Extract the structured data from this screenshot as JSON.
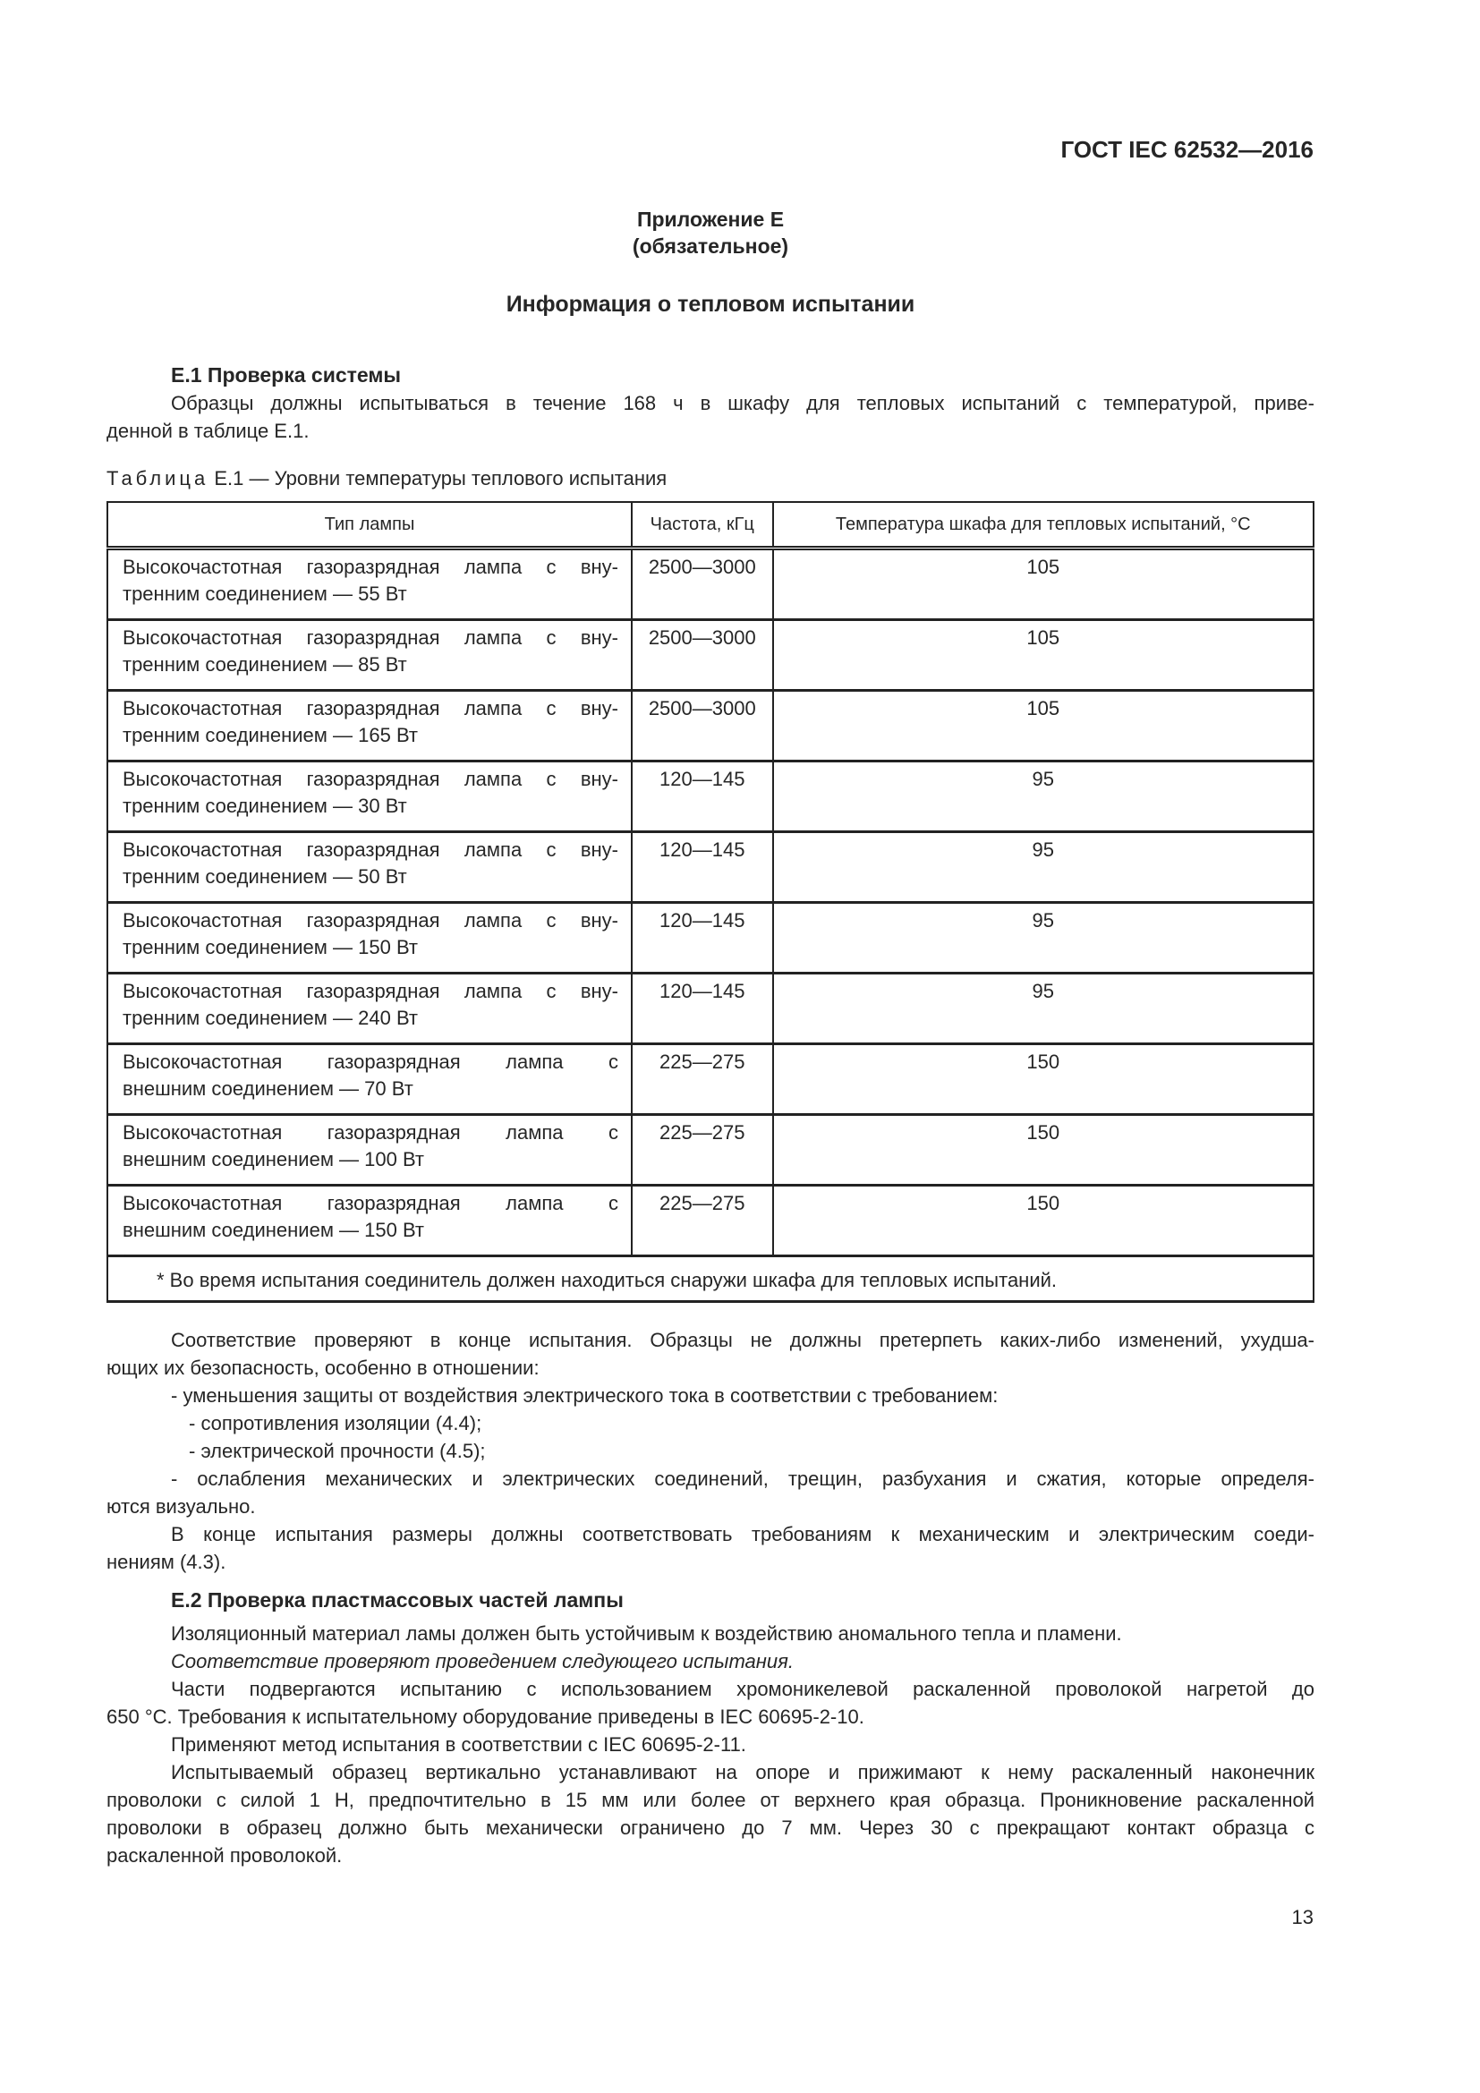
{
  "header": {
    "standard_code": "ГОСТ IEC 62532—2016"
  },
  "appendix": {
    "title": "Приложение Е",
    "status": "(обязательное)"
  },
  "section_title": "Информация о тепловом испытании",
  "e1": {
    "heading": "Е.1 Проверка системы",
    "intro": [
      [
        "Образцы должны испытываться в течение 168 ч в шкафу для тепловых испытаний с температурой, приве-",
        "денной в таблице Е.1."
      ]
    ]
  },
  "table": {
    "caption_label": "Таблица",
    "caption_text": " Е.1 — Уровни температуры теплового испытания",
    "headers": [
      "Тип лампы",
      "Частота, кГц",
      "Температура шкафа для тепловых испытаний, °С"
    ],
    "rows": [
      {
        "type": [
          "Высокочастотная газоразрядная лампа с вну-",
          "тренним соединением — 55 Вт"
        ],
        "freq": "2500—3000",
        "temp": "105"
      },
      {
        "type": [
          "Высокочастотная газоразрядная лампа  с вну-",
          "тренним соединением — 85 Вт"
        ],
        "freq": "2500—3000",
        "temp": "105"
      },
      {
        "type": [
          "Высокочастотная газоразрядная лампа  с вну-",
          "тренним соединением — 165 Вт"
        ],
        "freq": "2500—3000",
        "temp": "105"
      },
      {
        "type": [
          "Высокочастотная газоразрядная лампа с вну-",
          "тренним соединением — 30 Вт"
        ],
        "freq": "120—145",
        "temp": "95"
      },
      {
        "type": [
          "Высокочастотная газоразрядная лампа с вну-",
          "тренним соединением — 50 Вт"
        ],
        "freq": "120—145",
        "temp": "95"
      },
      {
        "type": [
          "Высокочастотная газоразрядная лампа с вну-",
          "тренним соединением — 150 Вт"
        ],
        "freq": "120—145",
        "temp": "95"
      },
      {
        "type": [
          "Высокочастотная газоразрядная лампа  с вну-",
          "тренним соединением — 240 Вт"
        ],
        "freq": "120—145",
        "temp": "95"
      },
      {
        "type": [
          "Высокочастотная газоразрядная лампа с",
          "внешним соединением — 70 Вт"
        ],
        "freq": "225—275",
        "temp": "150"
      },
      {
        "type": [
          "Высокочастотная газоразрядная лампа с",
          "внешним соединением — 100 Вт"
        ],
        "freq": "225—275",
        "temp": "150"
      },
      {
        "type": [
          "Высокочастотная газоразрядная лампа с",
          "внешним соединением — 150 Вт"
        ],
        "freq": "225—275",
        "temp": "150"
      }
    ],
    "footnote": "* Во время испытания соединитель должен находиться снаружи шкафа для тепловых испытаний."
  },
  "after_table": [
    {
      "kind": "para",
      "lines": [
        "Соответствие проверяют в конце испытания. Образцы не должны претерпеть каких-либо изменений, ухудша-",
        "ющих их безопасность, особенно в отношении:"
      ]
    },
    {
      "kind": "item",
      "lines": [
        "- уменьшения защиты от воздействия электрического тока в соответствии с требованием:"
      ]
    },
    {
      "kind": "subitem",
      "lines": [
        "- сопротивления изоляции (4.4);"
      ]
    },
    {
      "kind": "subitem",
      "lines": [
        "- электрической прочности (4.5);"
      ]
    },
    {
      "kind": "item",
      "lines": [
        "- ослабления механических и электрических соединений, трещин, разбухания и сжатия, которые определя-",
        "ются визуально."
      ]
    },
    {
      "kind": "para",
      "lines": [
        "В конце испытания размеры должны соответствовать требованиям к механическим и электрическим соеди-",
        "нениям (4.3)."
      ]
    }
  ],
  "e2": {
    "heading": "Е.2 Проверка пластмассовых частей лампы",
    "paragraphs": [
      {
        "kind": "para",
        "lines": [
          "Изоляционный материал ламы должен быть устойчивым к воздействию аномального тепла и пламени."
        ]
      },
      {
        "kind": "para",
        "emphasis": "italic",
        "lines": [
          "Соответствие проверяют проведением следующего испытания."
        ]
      },
      {
        "kind": "para",
        "lines": [
          "Части подвергаются испытанию с использованием хромоникелевой раскаленной проволокой нагретой до",
          "650 °С. Требования к испытательному оборудование приведены в IEC 60695-2-10."
        ]
      },
      {
        "kind": "para",
        "lines": [
          "Применяют метод испытания в соответствии с IEC 60695-2-11."
        ]
      },
      {
        "kind": "para",
        "lines": [
          "Испытываемый образец вертикально устанавливают на опоре и прижимают к нему раскаленный наконечник",
          "проволоки с силой 1 Н, предпочтительно в 15 мм или более от верхнего края образца. Проникновение раскаленной",
          "проволоки в образец должно быть механически ограничено до 7 мм. Через 30 с прекращают контакт образца с",
          "раскаленной проволокой."
        ]
      }
    ]
  },
  "page_number": "13"
}
